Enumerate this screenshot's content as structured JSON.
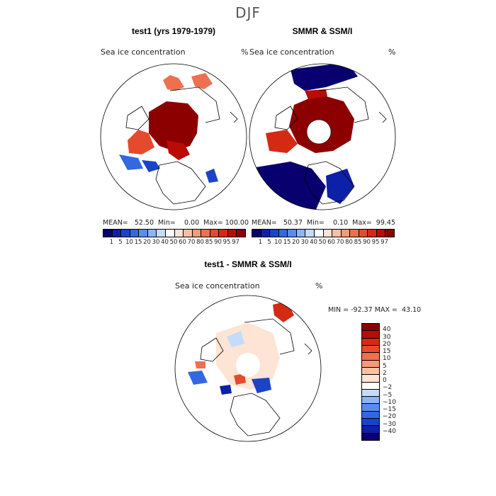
{
  "season": "DJF",
  "panels": {
    "model": {
      "title": "test1 (yrs 1979-1979)",
      "variable": "Sea ice concentration",
      "unit": "%",
      "stats": "MEAN=   52.50  Min=    0.00  Max= 100.00"
    },
    "obs": {
      "title": "SMMR & SSM/I",
      "variable": "Sea ice concentration",
      "unit": "%",
      "stats": "MEAN=   50.37  Min=    0.10  Max=  99.45"
    },
    "diff": {
      "title": "test1 - SMMR & SSM/I",
      "variable": "Sea ice concentration",
      "unit": "%",
      "stats": "MIN = -92.37 MAX =  43.10"
    }
  },
  "colorbar_conc": {
    "colors": [
      "#08006e",
      "#0c20a8",
      "#1a44c8",
      "#3568e0",
      "#5a8cf0",
      "#8cb4f8",
      "#c4dcfc",
      "#ffffff",
      "#fde4d4",
      "#fbc0a4",
      "#f49a78",
      "#ee7050",
      "#e54a2c",
      "#d42a14",
      "#b80c04",
      "#8c0000"
    ],
    "labels": [
      "1",
      "5",
      "10",
      "15",
      "20",
      "30",
      "40",
      "50",
      "60",
      "70",
      "80",
      "85",
      "90",
      "95",
      "97"
    ]
  },
  "colorbar_diff": {
    "colors": [
      "#8c0000",
      "#b80c04",
      "#d42a14",
      "#e54a2c",
      "#ee7050",
      "#f49a78",
      "#fbc0a4",
      "#fde4d4",
      "#ffffff",
      "#c4dcfc",
      "#8cb4f8",
      "#5a8cf0",
      "#3568e0",
      "#1a44c8",
      "#0c20a8",
      "#08006e"
    ],
    "labels": [
      "40",
      "30",
      "20",
      "15",
      "10",
      "5",
      "2",
      "0",
      "−2",
      "−5",
      "−10",
      "−15",
      "−20",
      "−30",
      "−40"
    ]
  }
}
